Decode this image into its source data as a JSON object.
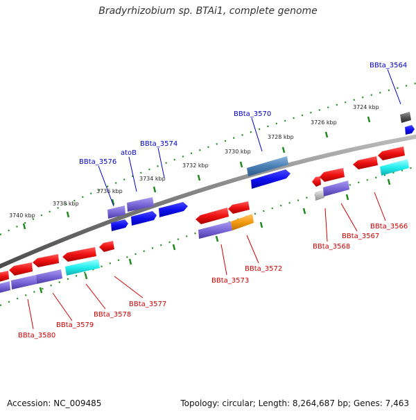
{
  "title": "Bradyrhizobium sp. BTAi1, complete genome",
  "footer": {
    "accession": "Accession: NC_009485",
    "topology": "Topology: circular; Length: 8,264,687 bp; Genes: 7,463"
  },
  "colors": {
    "backbone": "#7a7a7a",
    "tick_dots": "#1e8a1e",
    "forward_label": "#0000cc",
    "reverse_label": "#cc0000",
    "blue": "#1111ee",
    "red": "#ee1111",
    "purple": "#7b68d8",
    "cyan": "#22eeee",
    "steel": "#4a7fb5",
    "orange": "#f39c12",
    "gray": "#555555",
    "light_gray": "#c0c0c0"
  },
  "scale_labels": [
    "3740 kbp",
    "3738 kbp",
    "3736 kbp",
    "3734 kbp",
    "3732 kbp",
    "3730 kbp",
    "3728 kbp",
    "3726 kbp",
    "3724 kbp"
  ],
  "forward_labels": [
    "BBta_3576",
    "atoB",
    "BBta_3574",
    "BBta_3570",
    "BBta_3564"
  ],
  "reverse_labels": [
    "BBta_3580",
    "BBta_3579",
    "BBta_3578",
    "BBta_3577",
    "BBta_3573",
    "BBta_3572",
    "BBta_3568",
    "BBta_3567",
    "BBta_3566"
  ]
}
